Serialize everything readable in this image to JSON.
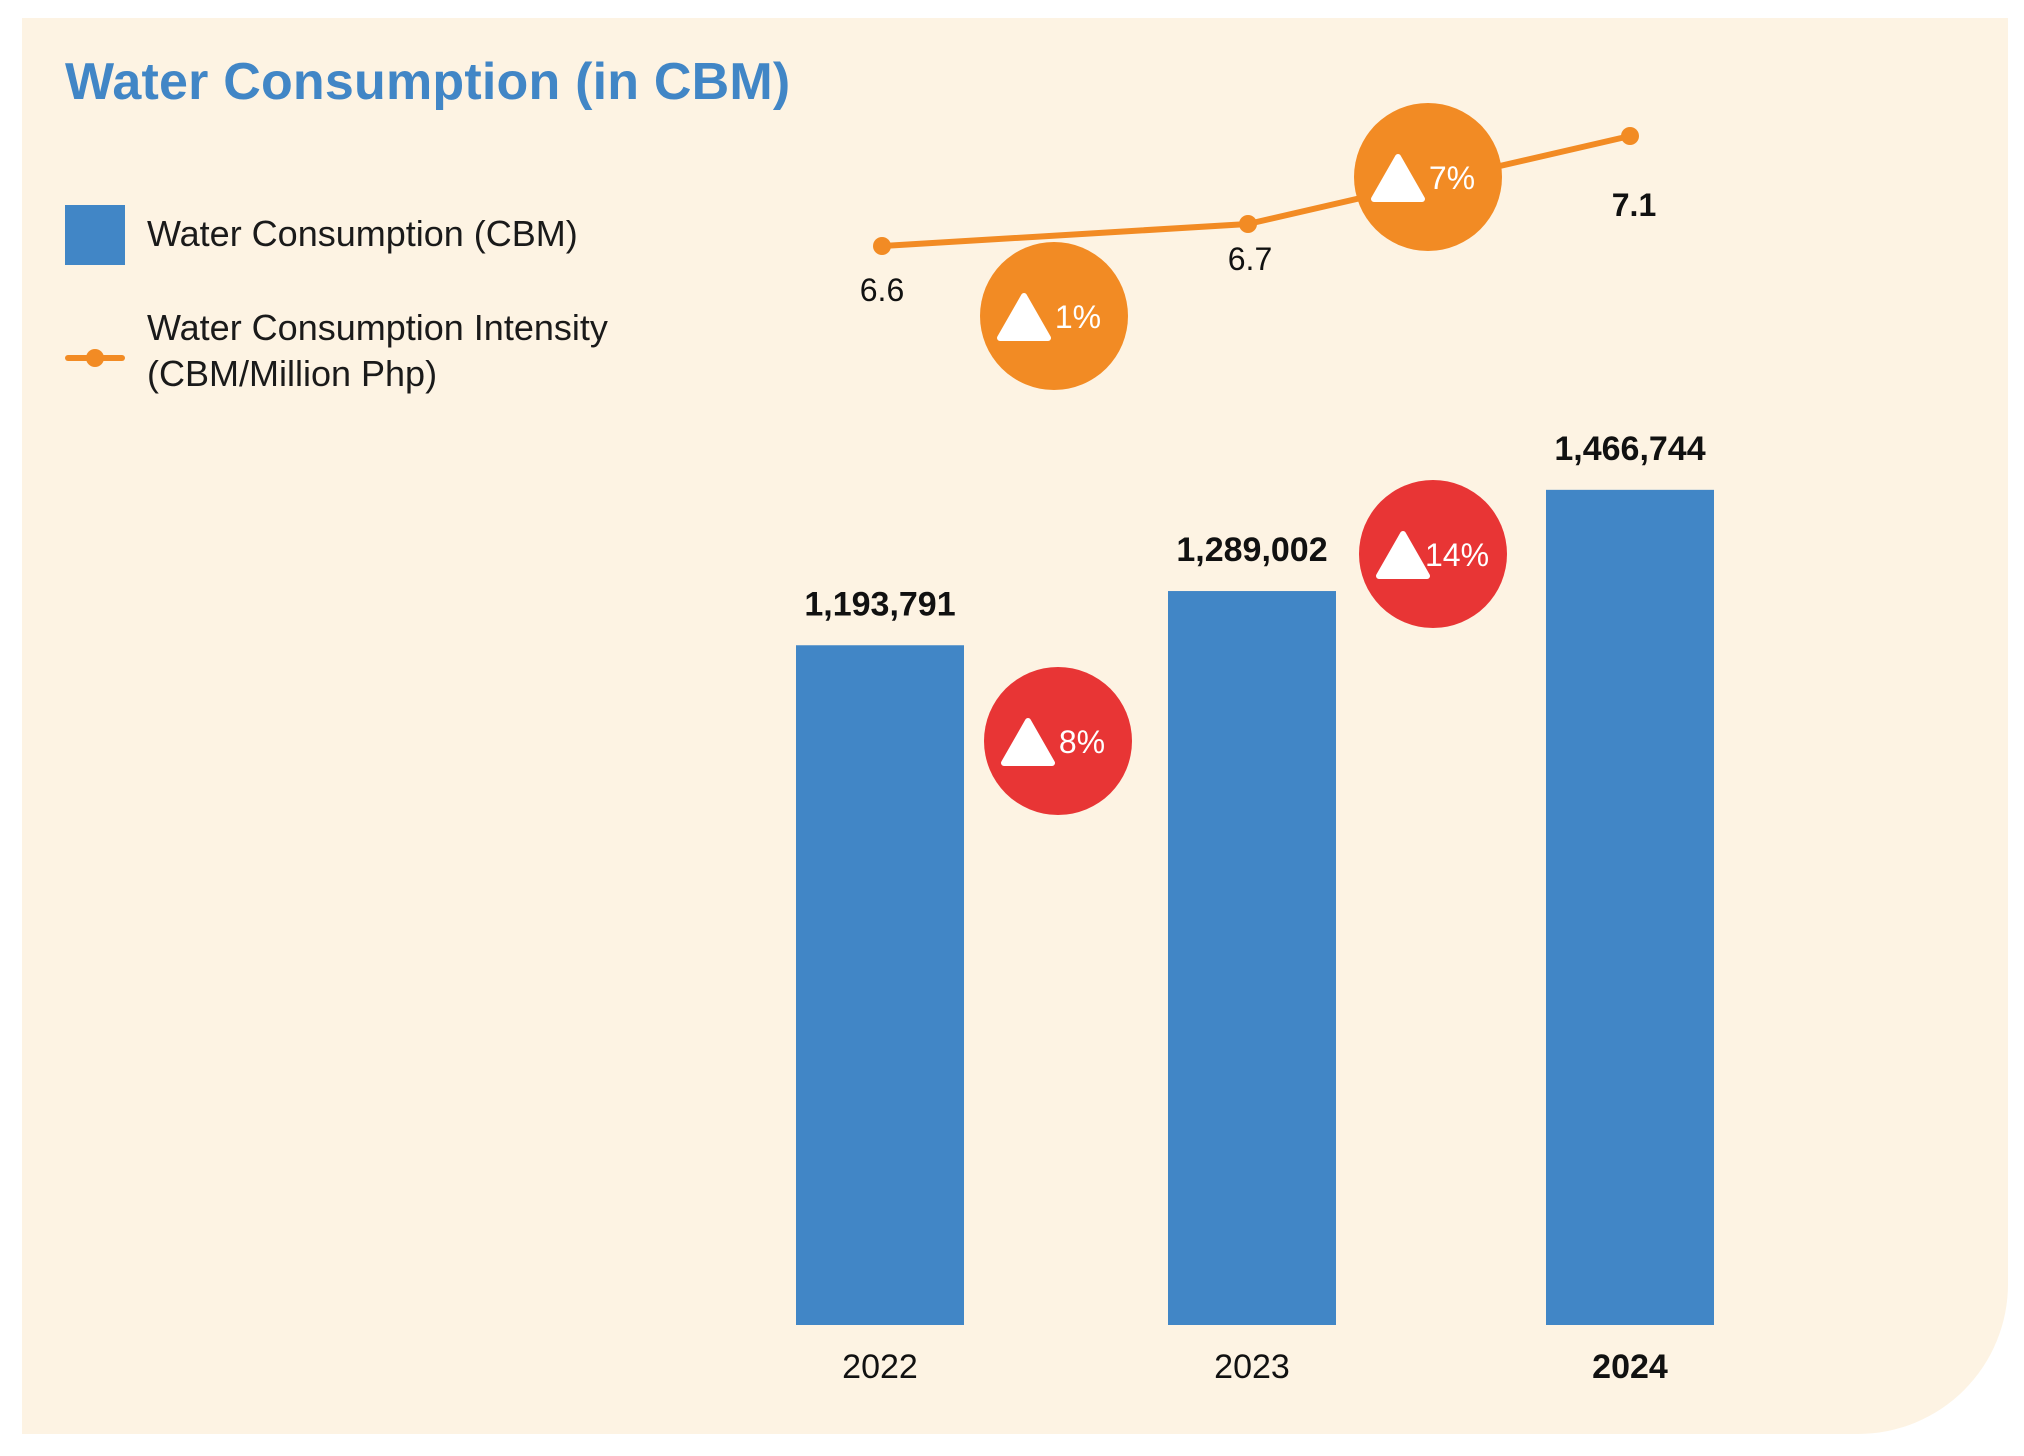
{
  "title": "Water Consumption (in CBM)",
  "legend": {
    "bar_label": "Water Consumption (CBM)",
    "line_label": "Water Consumption Intensity\n(CBM/Million Php)"
  },
  "colors": {
    "bar": "#4186c6",
    "line": "#f28b24",
    "badge_red": "#e83535",
    "badge_orange": "#f28b24",
    "background": "#fdf3e3"
  },
  "chart_data": {
    "type": "bar",
    "title": "Water Consumption (in CBM)",
    "categories": [
      "2022",
      "2023",
      "2024"
    ],
    "series": [
      {
        "name": "Water Consumption (CBM)",
        "type": "bar",
        "values": [
          1193791,
          1289002,
          1466744
        ],
        "labels": [
          "1,193,791",
          "1,289,002",
          "1,466,744"
        ]
      },
      {
        "name": "Water Consumption Intensity (CBM/Million Php)",
        "type": "line",
        "values": [
          6.6,
          6.7,
          7.1
        ],
        "labels": [
          "6.6",
          "6.7",
          "7.1"
        ]
      }
    ],
    "bar_changes": [
      "8%",
      "14%"
    ],
    "line_changes": [
      "1%",
      "7%"
    ],
    "xlabel": "",
    "ylabel": ""
  }
}
